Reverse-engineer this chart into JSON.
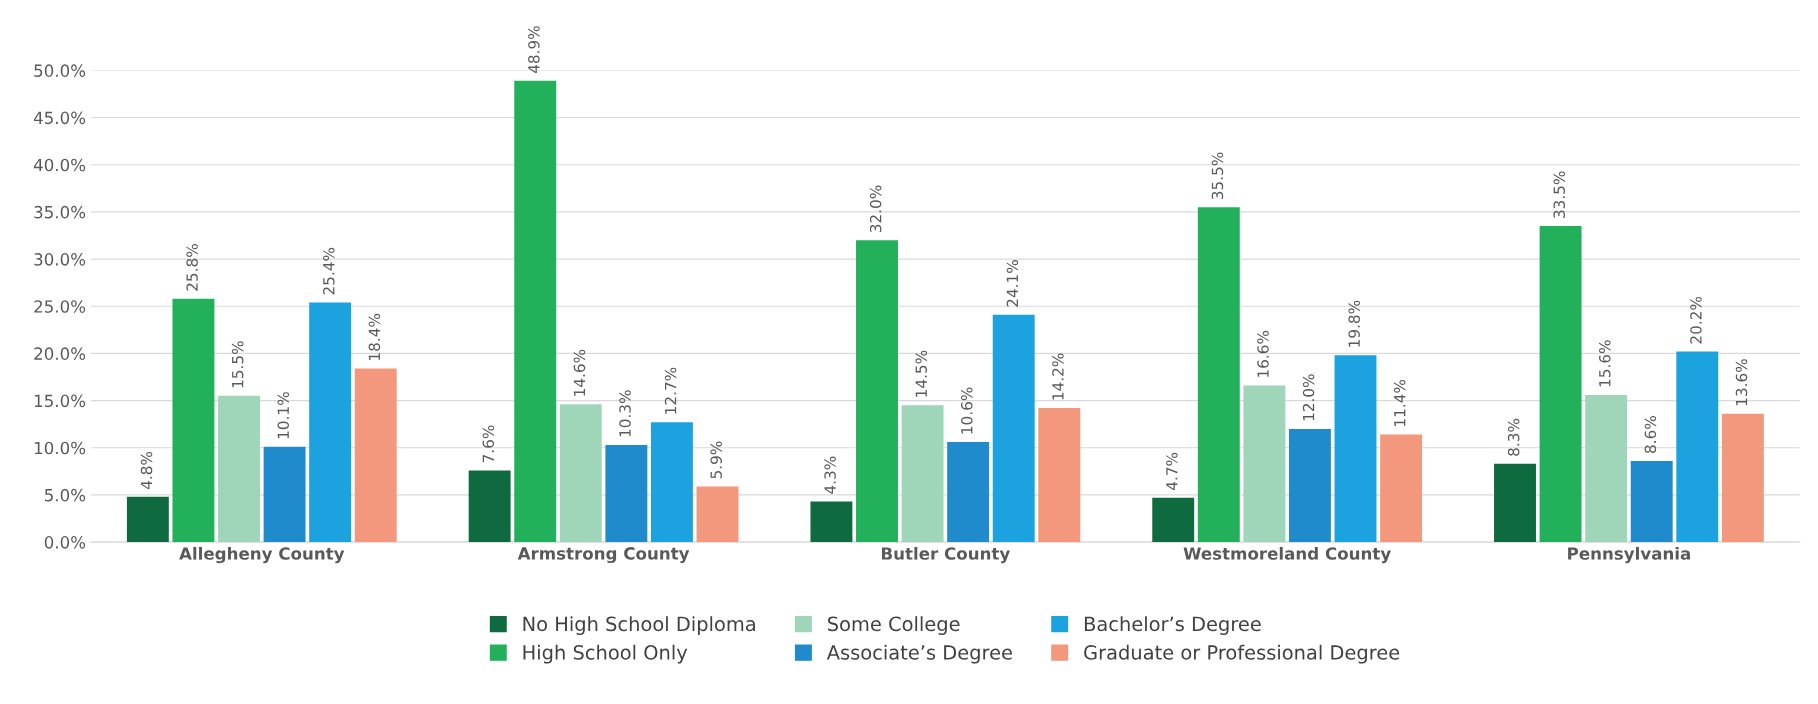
{
  "chart_data": {
    "type": "bar",
    "categories": [
      "Allegheny County",
      "Armstrong County",
      "Butler County",
      "Westmoreland County",
      "Pennsylvania"
    ],
    "series": [
      {
        "name": "No High School Diploma",
        "color": "#0f6b3f",
        "values": [
          4.8,
          7.6,
          4.3,
          4.7,
          8.3
        ],
        "value_labels": [
          "4.8%",
          "7.6%",
          "4.3%",
          "4.7%",
          "8.3%"
        ]
      },
      {
        "name": "High School Only",
        "color": "#23b05b",
        "values": [
          25.8,
          48.9,
          32.0,
          35.5,
          33.5
        ],
        "value_labels": [
          "25.8%",
          "48.9%",
          "32.0%",
          "35.5%",
          "33.5%"
        ]
      },
      {
        "name": "Some College",
        "color": "#9fd5b8",
        "values": [
          15.5,
          14.6,
          14.5,
          16.6,
          15.6
        ],
        "value_labels": [
          "15.5%",
          "14.6%",
          "14.5%",
          "16.6%",
          "15.6%"
        ]
      },
      {
        "name": "Associate’s Degree",
        "color": "#1f8bcc",
        "values": [
          10.1,
          10.3,
          10.6,
          12.0,
          8.6
        ],
        "value_labels": [
          "10.1%",
          "10.3%",
          "10.6%",
          "12.0%",
          "8.6%"
        ]
      },
      {
        "name": "Bachelor’s Degree",
        "color": "#1ca3df",
        "values": [
          25.4,
          12.7,
          24.1,
          19.8,
          20.2
        ],
        "value_labels": [
          "25.4%",
          "12.7%",
          "24.1%",
          "19.8%",
          "20.2%"
        ]
      },
      {
        "name": "Graduate or Professional Degree",
        "color": "#f4987d",
        "values": [
          18.4,
          5.9,
          14.2,
          11.4,
          13.6
        ],
        "value_labels": [
          "18.4%",
          "5.9%",
          "14.2%",
          "11.4%",
          "13.6%"
        ]
      }
    ],
    "ylim": [
      0,
      50
    ],
    "yticks": [
      {
        "value": 0,
        "label": "0.0%"
      },
      {
        "value": 5,
        "label": "5.0%"
      },
      {
        "value": 10,
        "label": "10.0%"
      },
      {
        "value": 15,
        "label": "15.0%"
      },
      {
        "value": 20,
        "label": "20.0%"
      },
      {
        "value": 25,
        "label": "25.0%"
      },
      {
        "value": 30,
        "label": "30.0%"
      },
      {
        "value": 35,
        "label": "35.0%"
      },
      {
        "value": 40,
        "label": "40.0%"
      },
      {
        "value": 45,
        "label": "45.0%"
      },
      {
        "value": 50,
        "label": "50.0%"
      }
    ],
    "grid": "y",
    "legend": "bottom"
  }
}
